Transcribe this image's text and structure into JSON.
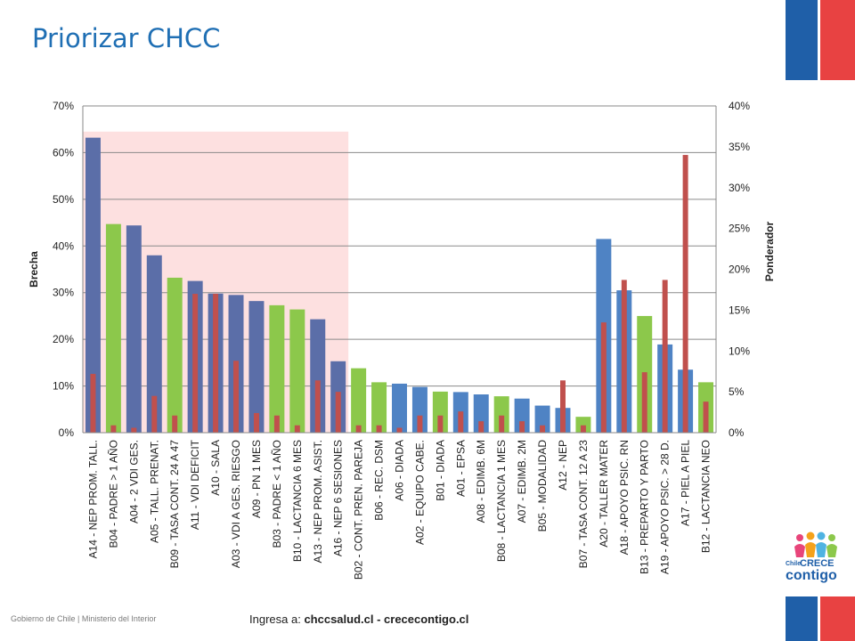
{
  "page": {
    "title": "Priorizar CHCC",
    "footer_left": "Gobierno de Chile | Ministerio del Interior",
    "footer_prefix": "Ingresa a: ",
    "footer_links": "chccsalud.cl - crececontigo.cl",
    "logo_prefix": "Chile",
    "logo_crece": "CRECE",
    "logo_contigo": "contigo"
  },
  "colors": {
    "title": "#1f6fb4",
    "highlight_region": "#fde0e0",
    "bar_dark": "#5b6ea8",
    "bar_blue": "#4f83c4",
    "bar_green": "#8cc84b",
    "ponderador": "#c0504d",
    "flag_blue": "#1f5fa8",
    "flag_red": "#e84242"
  },
  "chart_data": {
    "type": "bar",
    "ylabel": "Brecha",
    "y2label": "Ponderador",
    "ylim": [
      0,
      70
    ],
    "y2lim": [
      0,
      40
    ],
    "yticks": [
      "0%",
      "10%",
      "20%",
      "30%",
      "40%",
      "50%",
      "60%",
      "70%"
    ],
    "y2ticks": [
      "0%",
      "5%",
      "10%",
      "15%",
      "20%",
      "25%",
      "30%",
      "35%",
      "40%"
    ],
    "grid": true,
    "highlight_through_index": 13,
    "highlight_top": 64.5,
    "categories": [
      "A14 - NEP PROM. TALL.",
      "B04 - PADRE > 1 AÑO",
      "A04 - 2 VDI GES.",
      "A05 - TALL. PRENAT.",
      "B09 - TASA CONT. 24 A 47",
      "A11 - VDI DEFICIT",
      "A10 - SALA",
      "A03 - VDI A GES. RIESGO",
      "A09 - PN 1 MES",
      "B03 - PADRE < 1 AÑO",
      "B10 - LACTANCIA 6 MES",
      "A13 - NEP PROM. ASIST.",
      "A16 - NEP 6 SESIONES",
      "B02 - CONT. PREN. PAREJA",
      "B06 - REC. DSM",
      "A06 - DIADA",
      "A02 - EQUIPO CABE.",
      "B01 - DIADA",
      "A01 - EPSA",
      "A08 - EDIMB. 6M",
      "B08 - LACTANCIA 1 MES",
      "A07 - EDIMB. 2M",
      "B05 - MODALIDAD",
      "A12 - NEP",
      "B07 - TASA CONT. 12 A 23",
      "A20 - TALLER MATER",
      "A18 - APOYO PSIC. RN",
      "B13 - PREPARTO Y PARTO",
      "A19 - APOYO PSIC. > 28 D.",
      "A17 - PIEL A PIEL",
      "B12 - LACTANCIA NEO"
    ],
    "series": [
      {
        "name": "Brecha",
        "axis": "left",
        "values": [
          63.2,
          44.7,
          44.4,
          38.0,
          33.2,
          32.5,
          29.8,
          29.5,
          28.2,
          27.3,
          26.4,
          24.3,
          15.3,
          13.8,
          10.8,
          10.5,
          9.8,
          8.8,
          8.7,
          8.2,
          7.8,
          7.3,
          5.8,
          5.3,
          3.4,
          41.5,
          30.5,
          25.0,
          18.9,
          13.5,
          10.8
        ],
        "kinds": [
          "dark",
          "green",
          "dark",
          "dark",
          "green",
          "dark",
          "dark",
          "dark",
          "dark",
          "green",
          "green",
          "dark",
          "dark",
          "green",
          "green",
          "blue",
          "blue",
          "green",
          "blue",
          "blue",
          "green",
          "blue",
          "blue",
          "blue",
          "green",
          "blue",
          "blue",
          "green",
          "blue",
          "blue",
          "green"
        ]
      },
      {
        "name": "Ponderador",
        "axis": "right",
        "values": [
          7.2,
          0.9,
          0.6,
          4.5,
          2.1,
          17.0,
          17.0,
          8.8,
          2.4,
          2.1,
          0.9,
          6.4,
          5.0,
          0.9,
          0.9,
          0.6,
          2.1,
          2.1,
          2.6,
          1.4,
          2.1,
          1.4,
          0.9,
          6.4,
          0.9,
          13.5,
          18.7,
          7.4,
          18.7,
          34.0,
          3.8
        ]
      }
    ]
  }
}
